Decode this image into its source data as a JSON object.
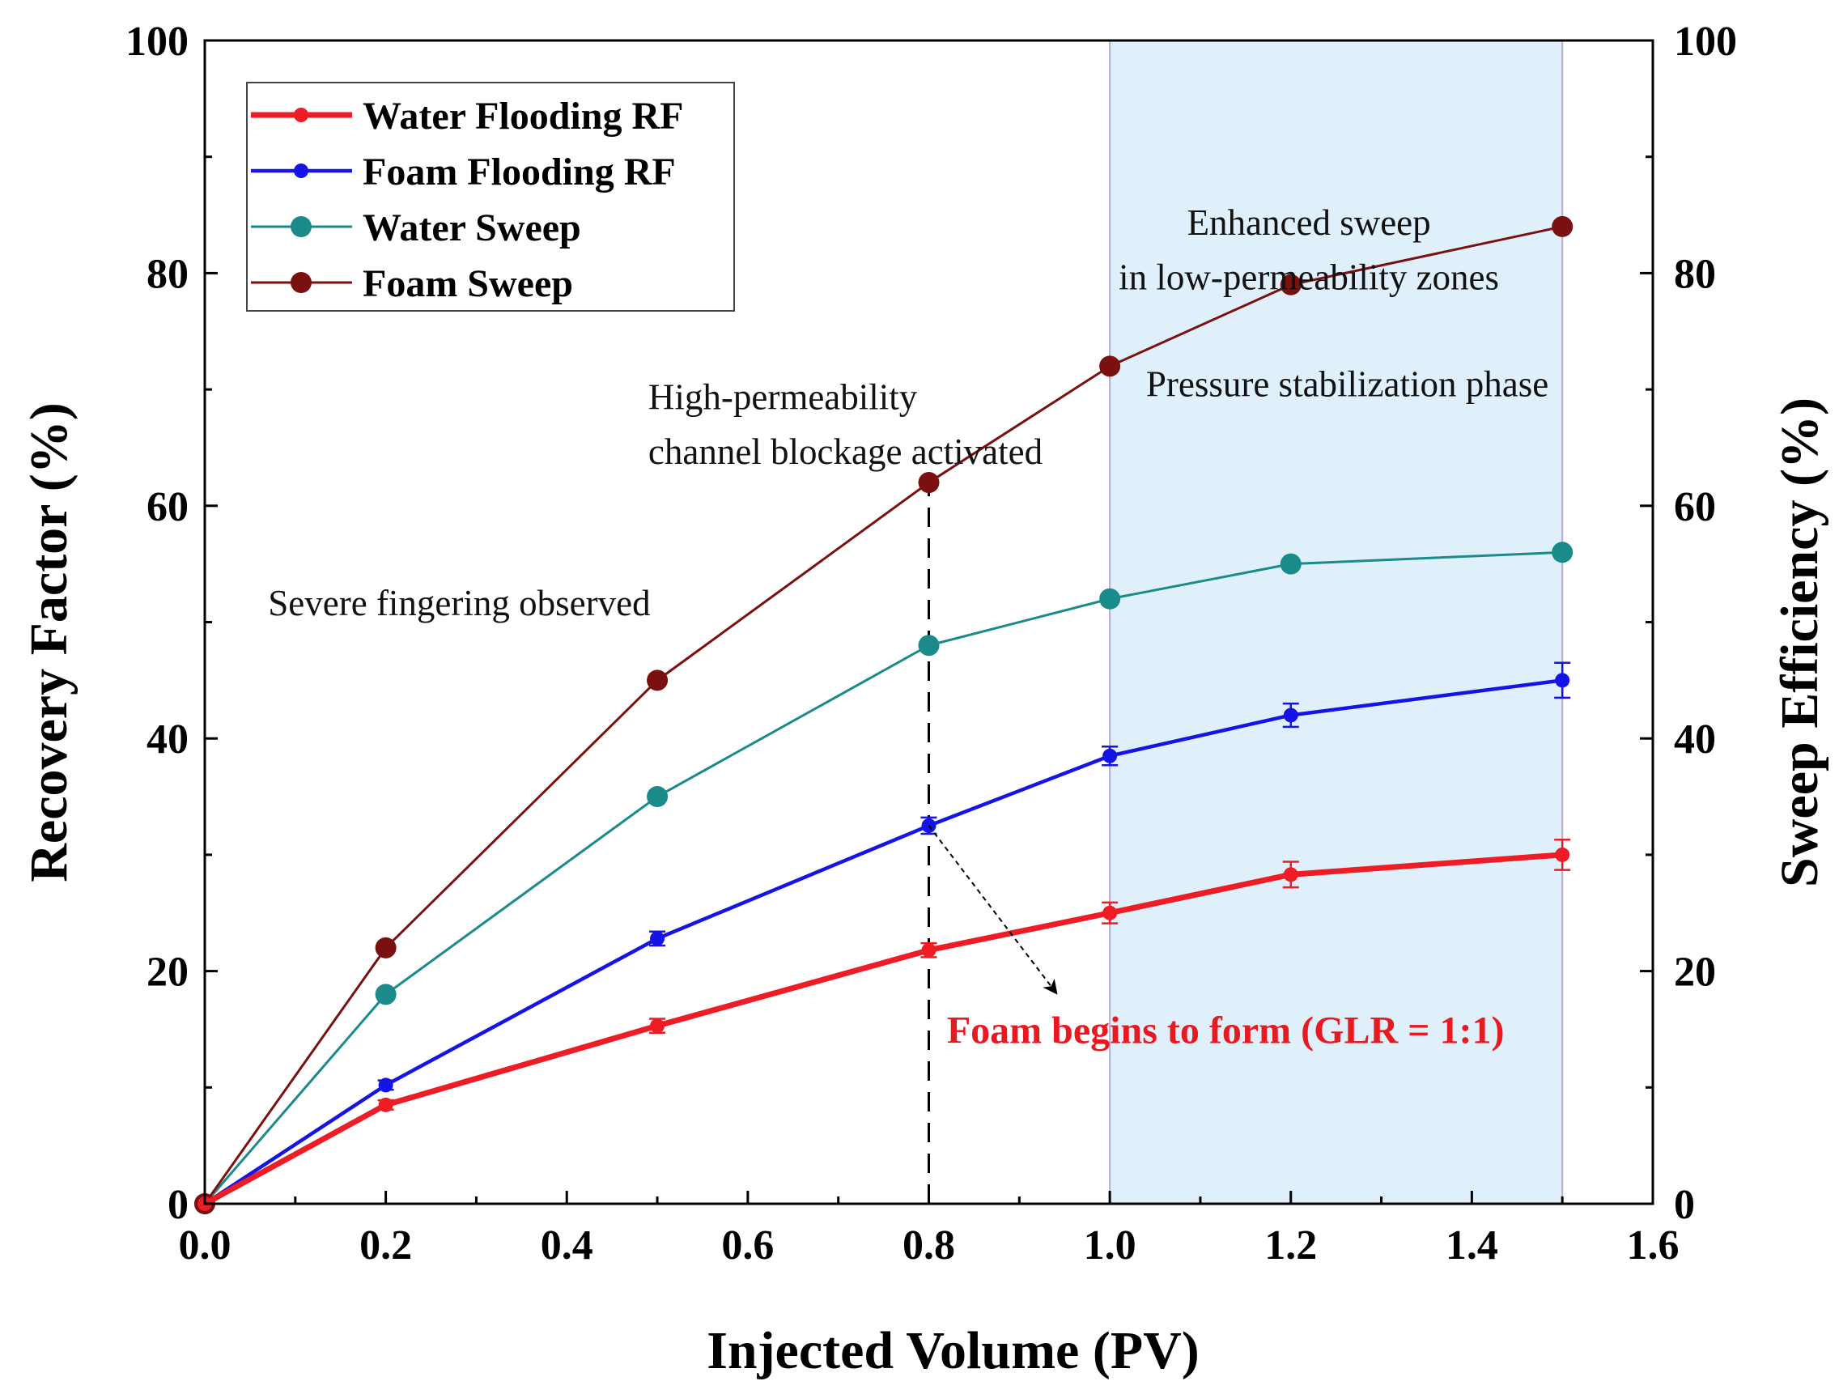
{
  "chart_data": {
    "type": "line",
    "xlabel": "Injected Volume (PV)",
    "ylabel": "Recovery Factor (%)",
    "y2label": "Sweep Efficiency (%)",
    "xlim": [
      0.0,
      1.6
    ],
    "ylim": [
      0,
      100
    ],
    "y2lim": [
      0,
      100
    ],
    "x_ticks": [
      "0.0",
      "0.2",
      "0.4",
      "0.6",
      "0.8",
      "1.0",
      "1.2",
      "1.4",
      "1.6"
    ],
    "y_ticks": [
      "0",
      "20",
      "40",
      "60",
      "80",
      "100"
    ],
    "y2_ticks": [
      "0",
      "20",
      "40",
      "60",
      "80",
      "100"
    ],
    "x": [
      0.0,
      0.2,
      0.5,
      0.8,
      1.0,
      1.2,
      1.5
    ],
    "series": [
      {
        "name": "Water Flooding RF",
        "axis": "left",
        "color": "#ee1c25",
        "marker_size": "small",
        "line": "thick",
        "values": [
          0,
          8.5,
          15.3,
          21.8,
          25.0,
          28.3,
          30.0
        ],
        "errors": [
          0,
          0.4,
          0.6,
          0.6,
          0.9,
          1.1,
          1.3
        ]
      },
      {
        "name": "Foam Flooding RF",
        "axis": "left",
        "color": "#1414e6",
        "marker_size": "small",
        "line": "medium",
        "values": [
          0,
          10.2,
          22.8,
          32.5,
          38.5,
          42.0,
          45.0
        ],
        "errors": [
          0,
          0.4,
          0.6,
          0.7,
          0.8,
          1.0,
          1.5
        ]
      },
      {
        "name": "Water Sweep",
        "axis": "right",
        "color": "#1a8a8a",
        "marker_size": "large",
        "line": "thin",
        "values": [
          0,
          18.0,
          35.0,
          48.0,
          52.0,
          55.0,
          56.0
        ]
      },
      {
        "name": "Foam Sweep",
        "axis": "right",
        "color": "#7b1010",
        "marker_size": "large",
        "line": "thin",
        "values": [
          0,
          22.0,
          45.0,
          62.0,
          72.0,
          79.0,
          84.0
        ]
      }
    ],
    "shaded_region": {
      "x_from": 1.0,
      "x_to": 1.5,
      "color": "#dff0fb"
    },
    "vertical_marker": {
      "x": 0.8,
      "y_from": 0,
      "y_to": 62.0,
      "style": "dashed"
    },
    "annotations": [
      {
        "text": "Severe fingering observed",
        "x": 0.07,
        "y": 50.6
      },
      {
        "text": "High-permeability",
        "x": 0.49,
        "y": 68.3
      },
      {
        "text": "channel blockage activated",
        "x": 0.49,
        "y": 63.6
      },
      {
        "text": "Enhanced sweep",
        "x": 1.22,
        "y": 83.3
      },
      {
        "text": "in low-permeability zones",
        "x": 1.22,
        "y": 78.6
      },
      {
        "text": "Pressure stabilization phase",
        "x": 1.04,
        "y": 69.4
      },
      {
        "text": "Foam begins to form (GLR = 1:1)",
        "x": 0.82,
        "y": 13.8,
        "color": "#e8191f"
      }
    ],
    "arrow": {
      "from": [
        0.8,
        32.5
      ],
      "to": [
        0.94,
        18.2
      ]
    },
    "legend": {
      "placement": "top-left",
      "entries": [
        "Water Flooding RF",
        "Foam Flooding RF",
        "Water Sweep",
        "Foam Sweep"
      ]
    }
  }
}
